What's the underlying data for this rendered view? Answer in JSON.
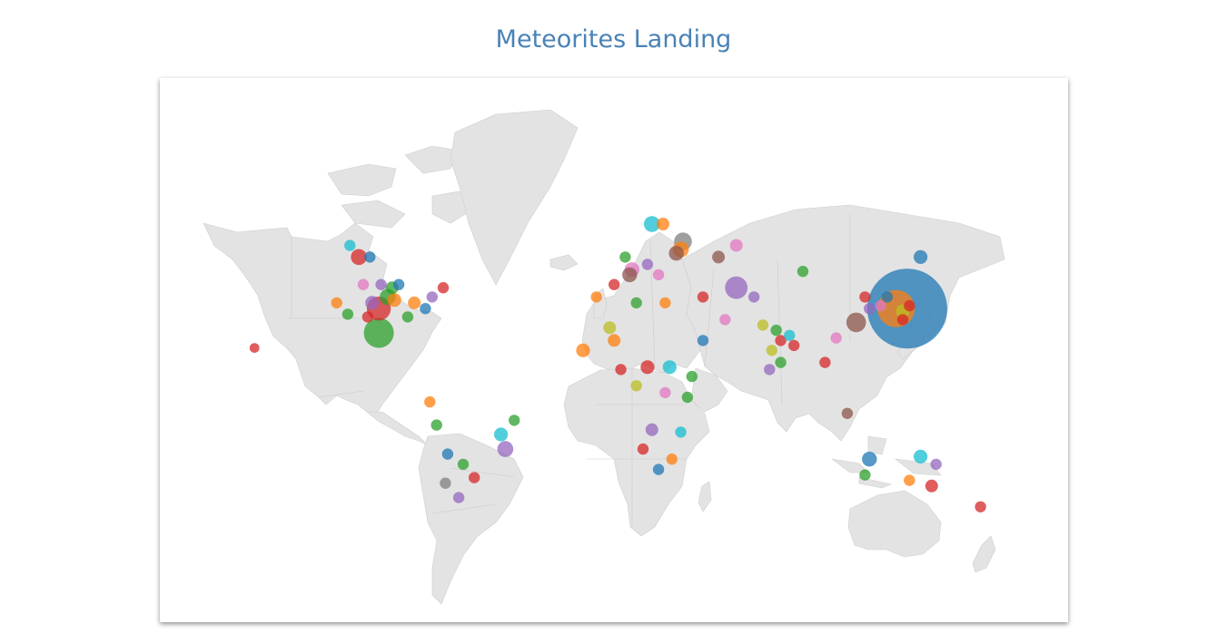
{
  "page": {
    "title": "Meteorites Landing"
  },
  "colors": {
    "title": "#4a82b6",
    "land": "#e3e3e3",
    "palette": [
      "#1f77b4",
      "#ff7f0e",
      "#2ca02c",
      "#d62728",
      "#9467bd",
      "#8c564b",
      "#e377c2",
      "#7f7f7f",
      "#bcbd22",
      "#17becf"
    ]
  },
  "chart_data": {
    "type": "scatter",
    "projection": "mercator",
    "encoding": "bubble radius proportional to meteorite mass",
    "points": [
      {
        "lon": 137.0,
        "lat": 36.0,
        "mass": 100,
        "color": "#1f77b4"
      },
      {
        "lon": 132.0,
        "lat": 36.0,
        "mass": 22,
        "color": "#ff7f0e"
      },
      {
        "lon": -101.0,
        "lat": 27.0,
        "mass": 14,
        "color": "#2ca02c"
      },
      {
        "lon": -101.0,
        "lat": 36.0,
        "mass": 9,
        "color": "#d62728"
      },
      {
        "lon": 60.0,
        "lat": 43.0,
        "mass": 8,
        "color": "#9467bd"
      },
      {
        "lon": 114.0,
        "lat": 31.0,
        "mass": 6,
        "color": "#8c564b"
      },
      {
        "lon": 36.0,
        "lat": 56.0,
        "mass": 5,
        "color": "#7f7f7f"
      },
      {
        "lon": 22.0,
        "lat": 60.0,
        "mass": 4,
        "color": "#17becf"
      },
      {
        "lon": -97.0,
        "lat": 40.0,
        "mass": 4,
        "color": "#2ca02c"
      },
      {
        "lon": -110.0,
        "lat": 52.0,
        "mass": 4,
        "color": "#d62728"
      },
      {
        "lon": 35.0,
        "lat": 54.0,
        "mass": 4,
        "color": "#ff7f0e"
      },
      {
        "lon": -44.0,
        "lat": -22.0,
        "mass": 4,
        "color": "#9467bd"
      },
      {
        "lon": 33.0,
        "lat": 53.0,
        "mass": 3.5,
        "color": "#8c564b"
      },
      {
        "lon": 13.0,
        "lat": 48.5,
        "mass": 3.5,
        "color": "#e377c2"
      },
      {
        "lon": 12.0,
        "lat": 47.0,
        "mass": 3.5,
        "color": "#8c564b"
      },
      {
        "lon": 120.0,
        "lat": -26.0,
        "mass": 3.5,
        "color": "#1f77b4"
      },
      {
        "lon": 143.0,
        "lat": 52.0,
        "mass": 3,
        "color": "#1f77b4"
      },
      {
        "lon": 143.0,
        "lat": -25.0,
        "mass": 3,
        "color": "#17becf"
      },
      {
        "lon": -94.0,
        "lat": 39.0,
        "mass": 3,
        "color": "#ff7f0e"
      },
      {
        "lon": -104.0,
        "lat": 38.0,
        "mass": 3,
        "color": "#9467bd"
      },
      {
        "lon": 135.0,
        "lat": 35.0,
        "mass": 3,
        "color": "#bcbd22"
      },
      {
        "lon": 20.0,
        "lat": 13.0,
        "mass": 3,
        "color": "#d62728"
      },
      {
        "lon": 30.0,
        "lat": 13.0,
        "mass": 3,
        "color": "#17becf"
      },
      {
        "lon": -9.0,
        "lat": 20.0,
        "mass": 3,
        "color": "#ff7f0e"
      },
      {
        "lon": -46.0,
        "lat": -16.0,
        "mass": 3,
        "color": "#17becf"
      },
      {
        "lon": 3.0,
        "lat": 29.0,
        "mass": 2.5,
        "color": "#bcbd22"
      },
      {
        "lon": 60.0,
        "lat": 55.0,
        "mass": 2.5,
        "color": "#e377c2"
      },
      {
        "lon": 52.0,
        "lat": 52.0,
        "mass": 2.5,
        "color": "#8c564b"
      },
      {
        "lon": 27.0,
        "lat": 60.0,
        "mass": 2.5,
        "color": "#ff7f0e"
      },
      {
        "lon": -85.0,
        "lat": 38.0,
        "mass": 2.5,
        "color": "#ff7f0e"
      },
      {
        "lon": 148.0,
        "lat": -36.0,
        "mass": 2.5,
        "color": "#d62728"
      },
      {
        "lon": 22.0,
        "lat": -14.0,
        "mass": 2.5,
        "color": "#9467bd"
      },
      {
        "lon": -95.0,
        "lat": 43.0,
        "mass": 2.5,
        "color": "#2ca02c"
      },
      {
        "lon": 5.0,
        "lat": 24.0,
        "mass": 2.5,
        "color": "#ff7f0e"
      },
      {
        "lon": -88.0,
        "lat": 33.0,
        "mass": 2,
        "color": "#2ca02c"
      },
      {
        "lon": -80.0,
        "lat": 36.0,
        "mass": 2,
        "color": "#1f77b4"
      },
      {
        "lon": -108.0,
        "lat": 44.0,
        "mass": 2,
        "color": "#e377c2"
      },
      {
        "lon": -100.0,
        "lat": 44.0,
        "mass": 2,
        "color": "#9467bd"
      },
      {
        "lon": -92.0,
        "lat": 44.0,
        "mass": 2,
        "color": "#1f77b4"
      },
      {
        "lon": 5.0,
        "lat": 44.0,
        "mass": 2,
        "color": "#d62728"
      },
      {
        "lon": 10.0,
        "lat": 52.0,
        "mass": 2,
        "color": "#2ca02c"
      },
      {
        "lon": 20.0,
        "lat": 50.0,
        "mass": 2,
        "color": "#9467bd"
      },
      {
        "lon": 25.0,
        "lat": 47.0,
        "mass": 2,
        "color": "#e377c2"
      },
      {
        "lon": -3.0,
        "lat": 40.0,
        "mass": 2,
        "color": "#ff7f0e"
      },
      {
        "lon": 78.0,
        "lat": 28.0,
        "mass": 2,
        "color": "#2ca02c"
      },
      {
        "lon": 80.0,
        "lat": 24.0,
        "mass": 2,
        "color": "#d62728"
      },
      {
        "lon": 84.0,
        "lat": 26.0,
        "mass": 2,
        "color": "#17becf"
      },
      {
        "lon": 76.0,
        "lat": 20.0,
        "mass": 2,
        "color": "#bcbd22"
      },
      {
        "lon": 80.0,
        "lat": 15.0,
        "mass": 2,
        "color": "#2ca02c"
      },
      {
        "lon": 118.0,
        "lat": 40.0,
        "mass": 2,
        "color": "#d62728"
      },
      {
        "lon": 120.0,
        "lat": 36.0,
        "mass": 2,
        "color": "#9467bd"
      },
      {
        "lon": 125.0,
        "lat": 37.0,
        "mass": 2,
        "color": "#e377c2"
      },
      {
        "lon": 138.0,
        "lat": 37.0,
        "mass": 2,
        "color": "#d62728"
      },
      {
        "lon": 110.0,
        "lat": -7.0,
        "mass": 2,
        "color": "#8c564b"
      },
      {
        "lon": 38.0,
        "lat": 0.0,
        "mass": 2,
        "color": "#2ca02c"
      },
      {
        "lon": 31.0,
        "lat": -26.0,
        "mass": 2,
        "color": "#ff7f0e"
      },
      {
        "lon": -58.0,
        "lat": -33.0,
        "mass": 2,
        "color": "#d62728"
      },
      {
        "lon": -63.0,
        "lat": -28.0,
        "mass": 2,
        "color": "#2ca02c"
      },
      {
        "lon": -70.0,
        "lat": -24.0,
        "mass": 2,
        "color": "#1f77b4"
      },
      {
        "lon": -71.0,
        "lat": -35.0,
        "mass": 2,
        "color": "#7f7f7f"
      },
      {
        "lon": -40.0,
        "lat": -10.0,
        "mass": 2,
        "color": "#2ca02c"
      },
      {
        "lon": 8.0,
        "lat": 12.0,
        "mass": 2,
        "color": "#d62728"
      },
      {
        "lon": 15.0,
        "lat": 5.0,
        "mass": 2,
        "color": "#bcbd22"
      },
      {
        "lon": 28.0,
        "lat": 2.0,
        "mass": 2,
        "color": "#e377c2"
      },
      {
        "lon": 35.0,
        "lat": -15.0,
        "mass": 2,
        "color": "#17becf"
      },
      {
        "lon": 45.0,
        "lat": 24.0,
        "mass": 2,
        "color": "#1f77b4"
      },
      {
        "lon": 68.0,
        "lat": 40.0,
        "mass": 2,
        "color": "#9467bd"
      },
      {
        "lon": 90.0,
        "lat": 48.0,
        "mass": 2,
        "color": "#2ca02c"
      },
      {
        "lon": 105.0,
        "lat": 25.0,
        "mass": 2,
        "color": "#e377c2"
      },
      {
        "lon": 100.0,
        "lat": 15.0,
        "mass": 2,
        "color": "#d62728"
      },
      {
        "lon": 128.0,
        "lat": 40.0,
        "mass": 2,
        "color": "#1f77b4"
      },
      {
        "lon": 135.0,
        "lat": 32.0,
        "mass": 2,
        "color": "#d62728"
      },
      {
        "lon": -120.0,
        "lat": 38.0,
        "mass": 2,
        "color": "#ff7f0e"
      },
      {
        "lon": -115.0,
        "lat": 34.0,
        "mass": 2,
        "color": "#2ca02c"
      },
      {
        "lon": -106.0,
        "lat": 33.0,
        "mass": 2,
        "color": "#d62728"
      },
      {
        "lon": -77.0,
        "lat": 40.0,
        "mass": 2,
        "color": "#9467bd"
      },
      {
        "lon": -72.0,
        "lat": 43.0,
        "mass": 2,
        "color": "#d62728"
      },
      {
        "lon": -114.0,
        "lat": 55.0,
        "mass": 2,
        "color": "#17becf"
      },
      {
        "lon": -105.0,
        "lat": 52.0,
        "mass": 2,
        "color": "#1f77b4"
      },
      {
        "lon": 28.0,
        "lat": 38.0,
        "mass": 2,
        "color": "#ff7f0e"
      },
      {
        "lon": 15.0,
        "lat": 38.0,
        "mass": 2,
        "color": "#2ca02c"
      },
      {
        "lon": 45.0,
        "lat": 40.0,
        "mass": 2,
        "color": "#d62728"
      },
      {
        "lon": 55.0,
        "lat": 32.0,
        "mass": 2,
        "color": "#e377c2"
      },
      {
        "lon": 72.0,
        "lat": 30.0,
        "mass": 2,
        "color": "#bcbd22"
      },
      {
        "lon": 86.0,
        "lat": 22.0,
        "mass": 2,
        "color": "#d62728"
      },
      {
        "lon": 75.0,
        "lat": 12.0,
        "mass": 2,
        "color": "#9467bd"
      },
      {
        "lon": 40.0,
        "lat": 9.0,
        "mass": 2,
        "color": "#2ca02c"
      },
      {
        "lon": 25.0,
        "lat": -30.0,
        "mass": 2,
        "color": "#1f77b4"
      },
      {
        "lon": 18.0,
        "lat": -22.0,
        "mass": 2,
        "color": "#d62728"
      },
      {
        "lon": -78.0,
        "lat": -2.0,
        "mass": 2,
        "color": "#ff7f0e"
      },
      {
        "lon": -75.0,
        "lat": -12.0,
        "mass": 2,
        "color": "#2ca02c"
      },
      {
        "lon": -65.0,
        "lat": -40.0,
        "mass": 2,
        "color": "#9467bd"
      },
      {
        "lon": 170.0,
        "lat": -43.0,
        "mass": 2,
        "color": "#d62728"
      },
      {
        "lon": 118.0,
        "lat": -32.0,
        "mass": 2,
        "color": "#2ca02c"
      },
      {
        "lon": 138.0,
        "lat": -34.0,
        "mass": 2,
        "color": "#ff7f0e"
      },
      {
        "lon": 150.0,
        "lat": -28.0,
        "mass": 2,
        "color": "#9467bd"
      },
      {
        "lon": -157.0,
        "lat": 21.0,
        "mass": 1.5,
        "color": "#d62728"
      }
    ]
  }
}
